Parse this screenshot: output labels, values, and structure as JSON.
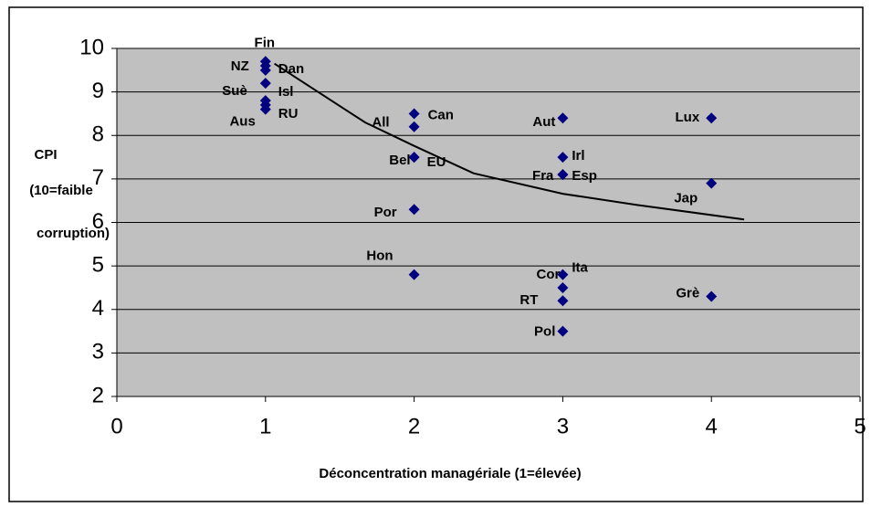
{
  "chart_data": {
    "type": "scatter",
    "x_label": "Déconcentration managériale  (1=élevée)",
    "y_label_lines": [
      "CPI",
      "(10=faible",
      "corruption)"
    ],
    "labels": [
      "Fin",
      "NZ",
      "Dan",
      "Suè",
      "Isl",
      "RU",
      "Aus",
      "Can",
      "All",
      "Bel",
      "EU",
      "Por",
      "Hon",
      "Aut",
      "Irl",
      "Fra",
      "Esp",
      "Ita",
      "Cor",
      "RT",
      "Pol",
      "Lux",
      "Jap",
      "Grè"
    ],
    "x": [
      1,
      1,
      1,
      1,
      1,
      1,
      1,
      2,
      2,
      2,
      2,
      2,
      2,
      3,
      3,
      3,
      3,
      3,
      3,
      3,
      3,
      4,
      4,
      4
    ],
    "values": [
      9.7,
      9.6,
      9.5,
      9.2,
      8.8,
      8.7,
      8.6,
      8.5,
      8.2,
      7.5,
      7.5,
      6.3,
      4.8,
      8.4,
      7.5,
      7.1,
      7.1,
      4.8,
      4.5,
      4.2,
      3.5,
      8.4,
      6.9,
      4.3
    ],
    "color": "#000080",
    "trend_x": [
      1.06,
      1.67,
      2.0,
      2.4,
      3.0,
      3.5,
      4.22
    ],
    "trend_values": [
      9.65,
      8.3,
      7.76,
      7.13,
      6.66,
      6.4,
      6.07
    ],
    "trend_color": "#000000",
    "xlim": [
      0,
      5
    ],
    "xticks": [
      0,
      1,
      2,
      3,
      4,
      5
    ],
    "ylim": [
      2,
      10
    ],
    "yticks": [
      2,
      3,
      4,
      5,
      6,
      7,
      8,
      9,
      10
    ],
    "grid": true,
    "plot_background": "#c0c0c0"
  }
}
